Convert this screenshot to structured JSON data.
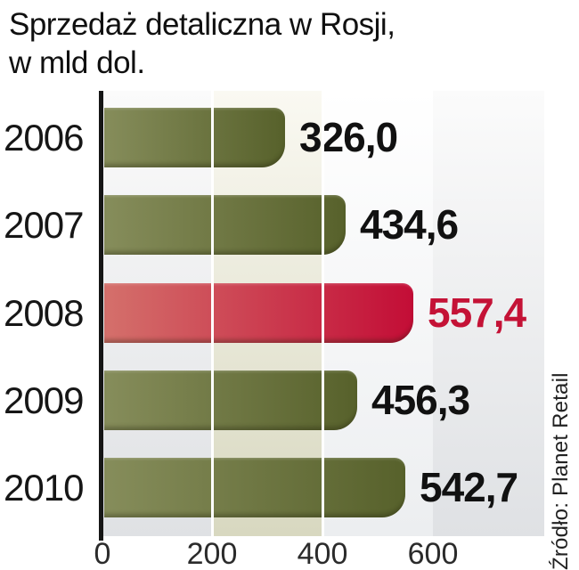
{
  "title": {
    "line1": "Sprzedaż detaliczna w Rosji,",
    "line2": "w mld dol."
  },
  "source": "Źródło: Planet Retail",
  "chart_data": {
    "type": "bar",
    "orientation": "horizontal",
    "title": "Sprzedaż detaliczna w Rosji, w mld dol.",
    "categories": [
      "2006",
      "2007",
      "2008",
      "2009",
      "2010"
    ],
    "values": [
      326.0,
      434.6,
      557.4,
      456.3,
      542.7
    ],
    "value_labels": [
      "326,0",
      "434,6",
      "557,4",
      "456,3",
      "542,7"
    ],
    "highlight_index": 2,
    "highlighted_category": "2008",
    "x_ticks": [
      "0",
      "200",
      "400",
      "600"
    ],
    "xlim": [
      0,
      800
    ],
    "unit": "mld dol.",
    "grid": "white vertical gridlines at 200 and 400",
    "legend": "none"
  },
  "colors": {
    "titleText": "#101010",
    "yearText": "#161616",
    "valueText": "#111111",
    "valueHighlight": "#c41236",
    "tickText": "#2b2b2b",
    "sourceText": "#222222",
    "axis": "#161616",
    "gridline": "#ffffff",
    "oliveLight": "#868d5b",
    "oliveDark": "#57612b",
    "redLight": "#d4706b",
    "redDark": "#c30d36",
    "stripeGrayTop": "#fbfbfb",
    "stripeGrayBottom": "#dfe1e4",
    "stripeBeigeTop": "#faf9f2",
    "stripeBeigeBottom": "#d8d8c0",
    "stripeLightTop": "#ffffff",
    "stripeLightBottom": "#eceef0"
  }
}
